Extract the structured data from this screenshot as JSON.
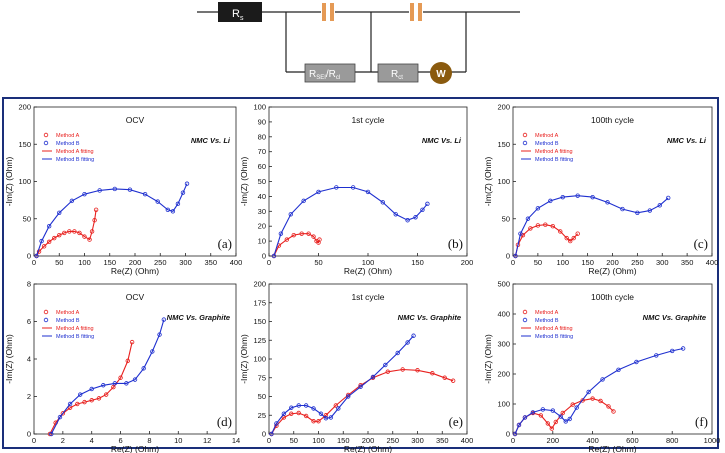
{
  "circuit": {
    "r_s": "R",
    "r_s_sub": "s",
    "r_sei_main": "R",
    "r_sei_sub1": "SEI",
    "r_sei_sep": "/R",
    "r_sei_sub2": "cl",
    "r_ct_main": "R",
    "r_ct_sub": "ct",
    "warburg": "W"
  },
  "chart_data": [
    {
      "type": "scatter",
      "panel_label": "(a)",
      "title": "OCV",
      "annotation": "NMC Vs. Li",
      "xlabel": "Re(Z) (Ohm)",
      "ylabel": "-Im(Z) (Ohm)",
      "xlim": [
        0,
        400
      ],
      "ylim": [
        0,
        200
      ],
      "xticks": [
        0,
        50,
        100,
        150,
        200,
        250,
        300,
        350,
        400
      ],
      "yticks": [
        0,
        50,
        100,
        150,
        200
      ],
      "legend": [
        "Method A",
        "Method B",
        "Method A fitting",
        "Method B fitting"
      ],
      "legend_position": "top-left",
      "series": [
        {
          "name": "Method A",
          "color": "#e8201e",
          "points": [
            [
              5,
              0
            ],
            [
              10,
              6
            ],
            [
              20,
              13
            ],
            [
              30,
              19
            ],
            [
              40,
              24
            ],
            [
              50,
              28
            ],
            [
              60,
              31
            ],
            [
              70,
              33
            ],
            [
              80,
              33
            ],
            [
              90,
              31
            ],
            [
              100,
              26
            ],
            [
              110,
              22
            ],
            [
              115,
              33
            ],
            [
              120,
              48
            ],
            [
              123,
              62
            ]
          ]
        },
        {
          "name": "Method B",
          "color": "#1e2fcf",
          "points": [
            [
              5,
              0
            ],
            [
              15,
              20
            ],
            [
              30,
              40
            ],
            [
              50,
              58
            ],
            [
              75,
              74
            ],
            [
              100,
              83
            ],
            [
              130,
              88
            ],
            [
              160,
              90
            ],
            [
              190,
              89
            ],
            [
              220,
              83
            ],
            [
              245,
              73
            ],
            [
              265,
              62
            ],
            [
              275,
              60
            ],
            [
              285,
              70
            ],
            [
              295,
              85
            ],
            [
              303,
              97
            ]
          ]
        }
      ]
    },
    {
      "type": "scatter",
      "panel_label": "(b)",
      "title": "1st cycle",
      "annotation": "NMC Vs. Li",
      "xlabel": "Re(Z) (Ohm)",
      "ylabel": "-Im(Z) (Ohm)",
      "xlim": [
        0,
        200
      ],
      "ylim": [
        0,
        100
      ],
      "xticks": [
        0,
        50,
        100,
        150,
        200
      ],
      "yticks": [
        0,
        10,
        20,
        30,
        40,
        50,
        60,
        70,
        80,
        90,
        100
      ],
      "legend": [],
      "series": [
        {
          "name": "Method A",
          "color": "#e8201e",
          "points": [
            [
              5,
              0
            ],
            [
              10,
              7
            ],
            [
              18,
              11
            ],
            [
              25,
              14
            ],
            [
              33,
              15
            ],
            [
              40,
              15
            ],
            [
              45,
              13
            ],
            [
              48,
              10
            ],
            [
              50,
              9
            ],
            [
              51,
              11
            ]
          ]
        },
        {
          "name": "Method B",
          "color": "#1e2fcf",
          "points": [
            [
              5,
              0
            ],
            [
              12,
              15
            ],
            [
              22,
              28
            ],
            [
              35,
              37
            ],
            [
              50,
              43
            ],
            [
              68,
              46
            ],
            [
              85,
              46
            ],
            [
              100,
              43
            ],
            [
              115,
              36
            ],
            [
              128,
              28
            ],
            [
              140,
              24
            ],
            [
              148,
              26
            ],
            [
              155,
              31
            ],
            [
              160,
              35
            ]
          ]
        }
      ]
    },
    {
      "type": "scatter",
      "panel_label": "(c)",
      "title": "100th cycle",
      "annotation": "NMC Vs. Li",
      "xlabel": "Re(Z) (Ohm)",
      "ylabel": "-Im(Z) (Ohm)",
      "xlim": [
        0,
        400
      ],
      "ylim": [
        0,
        200
      ],
      "xticks": [
        0,
        50,
        100,
        150,
        200,
        250,
        300,
        350,
        400
      ],
      "yticks": [
        0,
        50,
        100,
        150,
        200
      ],
      "legend": [
        "Method A",
        "Method B",
        "Method A fitting",
        "Method B fitting"
      ],
      "legend_position": "top-left",
      "series": [
        {
          "name": "Method A",
          "color": "#e8201e",
          "points": [
            [
              5,
              0
            ],
            [
              10,
              15
            ],
            [
              20,
              28
            ],
            [
              35,
              37
            ],
            [
              50,
              41
            ],
            [
              65,
              42
            ],
            [
              80,
              40
            ],
            [
              95,
              33
            ],
            [
              108,
              24
            ],
            [
              115,
              20
            ],
            [
              122,
              24
            ],
            [
              130,
              30
            ]
          ]
        },
        {
          "name": "Method B",
          "color": "#1e2fcf",
          "points": [
            [
              5,
              0
            ],
            [
              15,
              30
            ],
            [
              30,
              50
            ],
            [
              50,
              64
            ],
            [
              75,
              74
            ],
            [
              100,
              79
            ],
            [
              130,
              81
            ],
            [
              160,
              79
            ],
            [
              190,
              72
            ],
            [
              220,
              63
            ],
            [
              250,
              58
            ],
            [
              275,
              61
            ],
            [
              295,
              68
            ],
            [
              312,
              78
            ]
          ]
        }
      ]
    },
    {
      "type": "scatter",
      "panel_label": "(d)",
      "title": "OCV",
      "annotation": "NMC Vs. Graphite",
      "xlabel": "Re(Z) (Ohm)",
      "ylabel": "-Im(Z) (Ohm)",
      "xlim": [
        0,
        14
      ],
      "ylim": [
        0,
        8
      ],
      "xticks": [
        0,
        2,
        4,
        6,
        8,
        10,
        12,
        14
      ],
      "yticks": [
        0,
        2,
        4,
        6,
        8
      ],
      "legend": [
        "Method A",
        "Method B",
        "Method A fitting",
        "Method B fitting"
      ],
      "legend_position": "top-left",
      "series": [
        {
          "name": "Method A",
          "color": "#e8201e",
          "points": [
            [
              1.1,
              0
            ],
            [
              1.5,
              0.6
            ],
            [
              2,
              1.1
            ],
            [
              2.5,
              1.4
            ],
            [
              3,
              1.6
            ],
            [
              3.5,
              1.7
            ],
            [
              4,
              1.8
            ],
            [
              4.5,
              1.9
            ],
            [
              5,
              2.1
            ],
            [
              5.5,
              2.5
            ],
            [
              6,
              3
            ],
            [
              6.5,
              3.9
            ],
            [
              6.8,
              4.9
            ]
          ]
        },
        {
          "name": "Method B",
          "color": "#1e2fcf",
          "points": [
            [
              1.2,
              0
            ],
            [
              1.8,
              0.9
            ],
            [
              2.5,
              1.6
            ],
            [
              3.2,
              2.1
            ],
            [
              4,
              2.4
            ],
            [
              4.8,
              2.6
            ],
            [
              5.6,
              2.7
            ],
            [
              6.4,
              2.7
            ],
            [
              7,
              2.9
            ],
            [
              7.6,
              3.5
            ],
            [
              8.2,
              4.4
            ],
            [
              8.7,
              5.3
            ],
            [
              9,
              6.1
            ]
          ]
        }
      ]
    },
    {
      "type": "scatter",
      "panel_label": "(e)",
      "title": "1st cycle",
      "annotation": "NMC Vs. Graphite",
      "xlabel": "Re(Z) (Ohm)",
      "ylabel": "-Im(Z) (Ohm)",
      "xlim": [
        0,
        400
      ],
      "ylim": [
        0,
        200
      ],
      "xticks": [
        0,
        50,
        100,
        150,
        200,
        250,
        300,
        350,
        400
      ],
      "yticks": [
        0,
        25,
        50,
        75,
        100,
        125,
        150,
        175,
        200
      ],
      "legend": [],
      "series": [
        {
          "name": "Method A",
          "color": "#e8201e",
          "points": [
            [
              5,
              0
            ],
            [
              15,
              11
            ],
            [
              30,
              22
            ],
            [
              45,
              27
            ],
            [
              60,
              28
            ],
            [
              75,
              24
            ],
            [
              90,
              17
            ],
            [
              100,
              17
            ],
            [
              115,
              25
            ],
            [
              135,
              38
            ],
            [
              160,
              52
            ],
            [
              185,
              65
            ],
            [
              210,
              75
            ],
            [
              240,
              83
            ],
            [
              270,
              86
            ],
            [
              300,
              85
            ],
            [
              330,
              81
            ],
            [
              355,
              75
            ],
            [
              372,
              71
            ]
          ]
        },
        {
          "name": "Method B",
          "color": "#1e2fcf",
          "points": [
            [
              5,
              0
            ],
            [
              15,
              14
            ],
            [
              30,
              27
            ],
            [
              45,
              35
            ],
            [
              60,
              38
            ],
            [
              75,
              38
            ],
            [
              90,
              34
            ],
            [
              105,
              27
            ],
            [
              115,
              21
            ],
            [
              125,
              22
            ],
            [
              140,
              34
            ],
            [
              160,
              50
            ],
            [
              185,
              63
            ],
            [
              210,
              76
            ],
            [
              235,
              92
            ],
            [
              260,
              108
            ],
            [
              280,
              122
            ],
            [
              292,
              131
            ]
          ]
        }
      ]
    },
    {
      "type": "scatter",
      "panel_label": "(f)",
      "title": "100th cycle",
      "annotation": "NMC Vs. Graphite",
      "xlabel": "Re(Z) (Ohm)",
      "ylabel": "-Im(Z) (Ohm)",
      "xlim": [
        0,
        1000
      ],
      "ylim": [
        0,
        500
      ],
      "xticks": [
        0,
        200,
        400,
        600,
        800,
        1000
      ],
      "yticks": [
        0,
        100,
        200,
        300,
        400,
        500
      ],
      "legend": [
        "Method A",
        "Method B",
        "Method A fitting",
        "Method B fitting"
      ],
      "legend_position": "top-left",
      "series": [
        {
          "name": "Method A",
          "color": "#e8201e",
          "points": [
            [
              10,
              0
            ],
            [
              30,
              30
            ],
            [
              60,
              55
            ],
            [
              100,
              70
            ],
            [
              140,
              62
            ],
            [
              175,
              35
            ],
            [
              195,
              18
            ],
            [
              215,
              40
            ],
            [
              250,
              70
            ],
            [
              300,
              98
            ],
            [
              350,
              112
            ],
            [
              400,
              118
            ],
            [
              440,
              110
            ],
            [
              480,
              92
            ],
            [
              505,
              75
            ]
          ]
        },
        {
          "name": "Method B",
          "color": "#1e2fcf",
          "points": [
            [
              10,
              0
            ],
            [
              30,
              30
            ],
            [
              60,
              55
            ],
            [
              100,
              72
            ],
            [
              150,
              82
            ],
            [
              200,
              78
            ],
            [
              240,
              58
            ],
            [
              265,
              42
            ],
            [
              285,
              50
            ],
            [
              320,
              88
            ],
            [
              380,
              140
            ],
            [
              450,
              182
            ],
            [
              530,
              214
            ],
            [
              620,
              240
            ],
            [
              720,
              262
            ],
            [
              800,
              277
            ],
            [
              855,
              285
            ]
          ]
        }
      ]
    }
  ]
}
